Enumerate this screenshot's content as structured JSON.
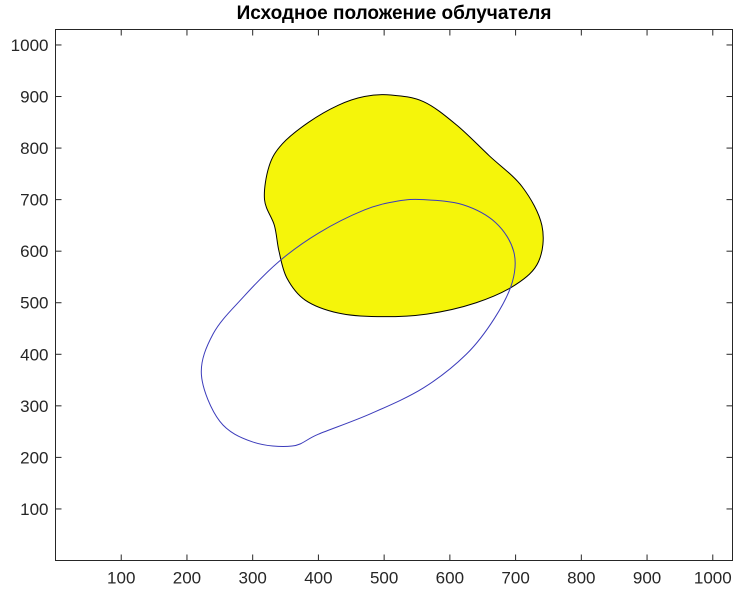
{
  "chart_data": {
    "type": "area",
    "title": "Исходное положение облучателя",
    "xlabel": "",
    "ylabel": "",
    "xlim": [
      0,
      1030
    ],
    "ylim": [
      0,
      1030
    ],
    "xticks": [
      100,
      200,
      300,
      400,
      500,
      600,
      700,
      800,
      900,
      1000
    ],
    "yticks": [
      100,
      200,
      300,
      400,
      500,
      600,
      700,
      800,
      900,
      1000
    ],
    "grid": false,
    "box": true,
    "series": [
      {
        "kind": "filled-blob",
        "fill": "#f5f50a",
        "stroke": "#000000",
        "points": [
          [
            510,
            903
          ],
          [
            560,
            890
          ],
          [
            610,
            845
          ],
          [
            660,
            785
          ],
          [
            710,
            725
          ],
          [
            740,
            650
          ],
          [
            735,
            580
          ],
          [
            700,
            535
          ],
          [
            640,
            500
          ],
          [
            565,
            478
          ],
          [
            490,
            473
          ],
          [
            430,
            480
          ],
          [
            380,
            505
          ],
          [
            352,
            548
          ],
          [
            340,
            600
          ],
          [
            333,
            650
          ],
          [
            318,
            700
          ],
          [
            325,
            765
          ],
          [
            345,
            808
          ],
          [
            385,
            850
          ],
          [
            430,
            883
          ],
          [
            470,
            900
          ]
        ]
      },
      {
        "kind": "ellipse",
        "stroke": "#3b3bbb",
        "points": [
          [
            560,
            700
          ],
          [
            620,
            690
          ],
          [
            670,
            655
          ],
          [
            697,
            600
          ],
          [
            695,
            540
          ],
          [
            668,
            470
          ],
          [
            625,
            400
          ],
          [
            560,
            335
          ],
          [
            480,
            285
          ],
          [
            400,
            245
          ],
          [
            360,
            222
          ],
          [
            300,
            230
          ],
          [
            250,
            270
          ],
          [
            222,
            360
          ],
          [
            240,
            440
          ],
          [
            285,
            510
          ],
          [
            340,
            580
          ],
          [
            400,
            635
          ],
          [
            470,
            680
          ],
          [
            520,
            697
          ]
        ]
      }
    ]
  }
}
